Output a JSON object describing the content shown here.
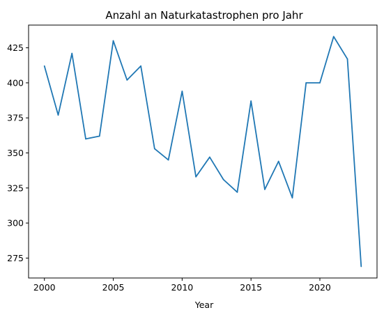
{
  "chart_data": {
    "type": "line",
    "title": "Anzahl an Naturkatastrophen pro Jahr",
    "xlabel": "Year",
    "ylabel": "",
    "xlim": [
      1998.85,
      2024.15
    ],
    "ylim": [
      260.8,
      441.2
    ],
    "xticks": [
      2000,
      2005,
      2010,
      2015,
      2020
    ],
    "yticks": [
      275,
      300,
      325,
      350,
      375,
      400,
      425
    ],
    "grid": false,
    "legend": "none",
    "series": [
      {
        "color": "#1f77b4",
        "x": [
          2000,
          2001,
          2002,
          2003,
          2004,
          2005,
          2006,
          2007,
          2008,
          2009,
          2010,
          2011,
          2012,
          2013,
          2014,
          2015,
          2016,
          2017,
          2018,
          2019,
          2020,
          2021,
          2022,
          2023
        ],
        "y": [
          412,
          377,
          421,
          360,
          362,
          430,
          402,
          412,
          353,
          345,
          394,
          333,
          347,
          331,
          322,
          387,
          324,
          344,
          318,
          400,
          400,
          433,
          417,
          269
        ]
      }
    ]
  }
}
